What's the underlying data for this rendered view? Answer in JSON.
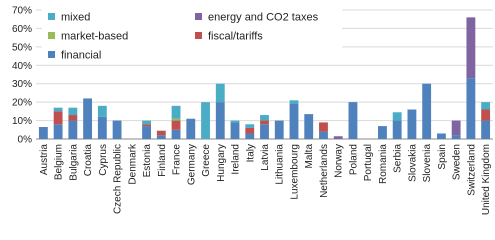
{
  "chart_data": {
    "type": "bar",
    "stacked": true,
    "categories": [
      "Austria",
      "Belgium",
      "Bulgaria",
      "Croatia",
      "Cyprus",
      "Czech Republic",
      "Denmark",
      "Estonia",
      "Finland",
      "France",
      "Germany",
      "Greece",
      "Hungary",
      "Ireland",
      "Italy",
      "Latvia",
      "Lithuania",
      "Luxembourg",
      "Malta",
      "Netherlands",
      "Norway",
      "Poland",
      "Portugal",
      "Romania",
      "Serbia",
      "Slovakia",
      "Slovenia",
      "Spain",
      "Sweden",
      "Switzerland",
      "United Kingdom"
    ],
    "series": [
      {
        "name": "financial",
        "color": "#4f81bd",
        "values": [
          6.5,
          8,
          10,
          22,
          12,
          10,
          0,
          7,
          2,
          5,
          11,
          0,
          20,
          9,
          3,
          8,
          10,
          19,
          13.5,
          4,
          0,
          20,
          0,
          7,
          10,
          16,
          30,
          3,
          2,
          33,
          10
        ]
      },
      {
        "name": "fiscal/tariffs",
        "color": "#c0504d",
        "values": [
          0,
          7,
          3,
          0,
          0,
          0,
          0,
          1,
          2.5,
          5,
          0,
          0,
          0,
          0,
          3,
          2,
          0,
          0,
          0,
          5,
          0,
          0,
          0,
          0,
          0,
          0,
          0,
          0,
          0,
          0,
          6
        ]
      },
      {
        "name": "market-based",
        "color": "#9bbb59",
        "values": [
          0,
          0,
          0,
          0,
          0,
          0,
          0,
          0,
          0,
          1,
          0,
          0,
          0,
          0,
          0,
          0,
          0,
          0,
          0,
          0,
          0,
          0,
          0,
          0,
          0,
          0,
          0,
          0,
          0,
          0,
          0
        ]
      },
      {
        "name": "energy and CO2 taxes",
        "color": "#8064a2",
        "values": [
          0,
          0,
          0,
          0,
          0,
          0,
          0,
          0,
          0,
          0,
          0,
          0,
          0,
          0,
          0,
          0,
          0,
          0,
          0,
          0,
          1.5,
          0,
          0,
          0,
          0,
          0,
          0,
          0,
          8,
          33,
          0
        ]
      },
      {
        "name": "mixed",
        "color": "#4bacc6",
        "values": [
          0,
          2,
          4,
          0,
          6,
          0,
          0,
          2,
          0,
          7,
          0,
          20,
          10,
          1,
          2,
          3,
          0,
          2,
          0,
          0,
          0,
          0,
          0,
          0,
          4.5,
          0,
          0,
          0,
          0,
          0,
          4
        ]
      }
    ],
    "ylim": [
      0,
      70
    ],
    "yticks": [
      {
        "value": 0,
        "label": "0%"
      },
      {
        "value": 10,
        "label": "10%"
      },
      {
        "value": 20,
        "label": "20%"
      },
      {
        "value": 30,
        "label": "30%"
      },
      {
        "value": 40,
        "label": "40%"
      },
      {
        "value": 50,
        "label": "50%"
      },
      {
        "value": 60,
        "label": "60%"
      },
      {
        "value": 70,
        "label": "70%"
      }
    ],
    "grid": true
  }
}
